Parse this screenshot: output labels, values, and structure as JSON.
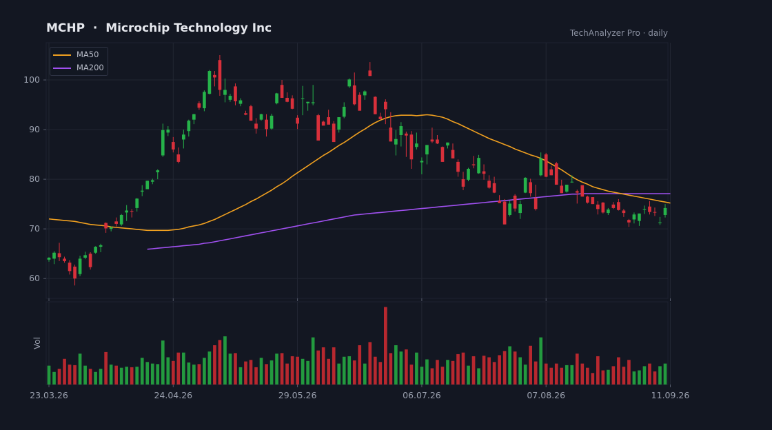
{
  "header": {
    "title": "MCHP  ·  Microchip Technology Inc",
    "source": "TechAnalyzer Pro · daily"
  },
  "colors": {
    "background": "#131722",
    "up": "#26b34a",
    "down": "#d9303b",
    "ma50": "#f0a020",
    "ma200": "#a050f0",
    "grid": "#222733",
    "text": "#9aa0ae"
  },
  "chart_data": {
    "type": "candlestick",
    "title": "MCHP  ·  Microchip Technology Inc",
    "x_tick_labels": [
      "23.03.26",
      "24.04.26",
      "29.05.26",
      "06.07.26",
      "07.08.26",
      "11.09.26"
    ],
    "x_tick_index": [
      0,
      24,
      48,
      72,
      96,
      120
    ],
    "y_ticks": [
      60,
      70,
      80,
      90,
      100
    ],
    "ylim": [
      56,
      107.5
    ],
    "volume_label": "Vol",
    "grid": true,
    "legend": {
      "position": "top-left",
      "entries": [
        {
          "name": "MA50",
          "color": "#f0a020"
        },
        {
          "name": "MA200",
          "color": "#a050f0"
        }
      ]
    },
    "ohlc": [
      [
        63.8,
        64.3,
        63.4,
        64.2
      ],
      [
        64.0,
        65.5,
        62.9,
        65.2
      ],
      [
        65.1,
        67.2,
        63.5,
        64.3
      ],
      [
        64.0,
        64.4,
        63.2,
        63.5
      ],
      [
        63.2,
        63.7,
        60.8,
        61.5
      ],
      [
        62.4,
        62.8,
        58.6,
        60.0
      ],
      [
        60.9,
        64.6,
        60.5,
        64.0
      ],
      [
        64.2,
        65.4,
        63.9,
        64.7
      ],
      [
        65.0,
        65.3,
        61.8,
        62.3
      ],
      [
        65.2,
        66.5,
        65.0,
        66.4
      ],
      [
        66.4,
        67.0,
        65.3,
        66.7
      ],
      [
        71.2,
        71.3,
        69.2,
        70.1
      ],
      [
        70.0,
        70.5,
        69.5,
        70.3
      ],
      [
        71.5,
        72.3,
        70.5,
        71.0
      ],
      [
        70.9,
        73.0,
        70.6,
        72.8
      ],
      [
        73.3,
        74.8,
        71.6,
        73.7
      ],
      [
        73.6,
        74.0,
        72.3,
        73.5
      ],
      [
        74.2,
        76.2,
        73.5,
        76.1
      ],
      [
        77.5,
        78.8,
        76.6,
        77.7
      ],
      [
        78.0,
        79.7,
        78.0,
        79.7
      ],
      [
        79.5,
        80.1,
        79.0,
        79.8
      ],
      [
        81.4,
        82.0,
        80.0,
        81.8
      ],
      [
        84.8,
        91.2,
        84.5,
        89.9
      ],
      [
        89.4,
        90.7,
        88.7,
        90.0
      ],
      [
        87.5,
        88.5,
        85.4,
        86.0
      ],
      [
        85.0,
        86.4,
        83.2,
        83.5
      ],
      [
        88.0,
        90.0,
        86.2,
        89.0
      ],
      [
        89.7,
        92.0,
        88.6,
        91.8
      ],
      [
        92.0,
        93.2,
        91.1,
        93.1
      ],
      [
        95.3,
        95.7,
        94.0,
        94.4
      ],
      [
        94.3,
        97.9,
        93.7,
        97.6
      ],
      [
        97.2,
        102.0,
        97.1,
        101.8
      ],
      [
        101.0,
        101.8,
        98.7,
        100.5
      ],
      [
        104.0,
        105.0,
        96.8,
        98.0
      ],
      [
        97.0,
        100.3,
        95.5,
        98.0
      ],
      [
        96.0,
        97.2,
        95.6,
        96.8
      ],
      [
        98.7,
        99.3,
        94.9,
        95.7
      ],
      [
        95.2,
        96.3,
        94.7,
        95.9
      ],
      [
        93.3,
        93.8,
        92.9,
        93.0
      ],
      [
        94.7,
        95.0,
        91.8,
        91.8
      ],
      [
        91.2,
        92.3,
        89.2,
        90.2
      ],
      [
        92.0,
        93.2,
        91.8,
        93.1
      ],
      [
        92.0,
        93.1,
        88.6,
        90.1
      ],
      [
        90.2,
        93.2,
        90.0,
        92.8
      ],
      [
        95.3,
        97.4,
        95.1,
        97.3
      ],
      [
        99.0,
        100.0,
        96.4,
        96.4
      ],
      [
        96.4,
        97.5,
        95.5,
        95.6
      ],
      [
        96.3,
        96.9,
        94.1,
        94.2
      ],
      [
        92.4,
        92.9,
        90.1,
        91.2
      ],
      [
        96.2,
        98.8,
        92.9,
        96.3
      ],
      [
        95.3,
        95.6,
        93.8,
        95.6
      ],
      [
        95.3,
        99.0,
        94.9,
        95.5
      ],
      [
        92.9,
        93.2,
        87.8,
        87.8
      ],
      [
        91.6,
        91.8,
        90.9,
        90.8
      ],
      [
        92.5,
        94.0,
        91.1,
        91.0
      ],
      [
        91.2,
        91.7,
        87.5,
        87.5
      ],
      [
        90.0,
        92.5,
        89.4,
        92.5
      ],
      [
        92.6,
        95.5,
        92.3,
        94.6
      ],
      [
        98.7,
        100.3,
        98.4,
        100.1
      ],
      [
        98.9,
        101.5,
        94.9,
        95.1
      ],
      [
        97.0,
        97.5,
        94.0,
        93.8
      ],
      [
        96.9,
        97.9,
        96.0,
        97.7
      ],
      [
        101.9,
        103.6,
        100.8,
        100.8
      ],
      [
        96.6,
        96.7,
        93.1,
        93.1
      ],
      [
        92.6,
        93.4,
        92.1,
        92.1
      ],
      [
        95.6,
        96.1,
        91.1,
        94.1
      ],
      [
        90.4,
        93.5,
        87.6,
        87.6
      ],
      [
        87.0,
        89.9,
        84.8,
        88.1
      ],
      [
        88.9,
        91.5,
        86.6,
        90.7
      ],
      [
        89.2,
        89.6,
        84.5,
        88.8
      ],
      [
        89.0,
        89.7,
        82.1,
        84.0
      ],
      [
        86.5,
        89.4,
        86.0,
        87.2
      ],
      [
        83.4,
        84.4,
        81.0,
        83.7
      ],
      [
        85.0,
        86.9,
        83.0,
        86.9
      ],
      [
        88.0,
        90.4,
        87.3,
        87.6
      ],
      [
        88.0,
        88.9,
        87.1,
        87.2
      ],
      [
        86.5,
        86.6,
        83.5,
        83.5
      ],
      [
        86.8,
        87.4,
        86.2,
        87.4
      ],
      [
        85.9,
        87.2,
        84.2,
        84.2
      ],
      [
        83.5,
        84.0,
        80.5,
        81.5
      ],
      [
        80.0,
        81.5,
        77.8,
        78.5
      ],
      [
        79.9,
        82.3,
        79.6,
        82.1
      ],
      [
        83.0,
        84.7,
        82.2,
        82.8
      ],
      [
        81.2,
        84.9,
        81.1,
        84.3
      ],
      [
        81.6,
        83.0,
        79.9,
        81.1
      ],
      [
        79.7,
        80.8,
        78.1,
        78.3
      ],
      [
        79.2,
        80.5,
        77.2,
        77.3
      ],
      [
        75.6,
        76.8,
        75.2,
        75.2
      ],
      [
        75.5,
        76.0,
        70.9,
        70.9
      ],
      [
        72.8,
        75.7,
        72.5,
        75.1
      ],
      [
        76.7,
        77.0,
        73.5,
        74.1
      ],
      [
        73.2,
        75.7,
        72.0,
        75.0
      ],
      [
        77.3,
        80.4,
        77.2,
        80.3
      ],
      [
        79.4,
        80.1,
        76.5,
        77.2
      ],
      [
        76.2,
        78.9,
        73.7,
        74.0
      ],
      [
        80.8,
        85.4,
        80.6,
        84.2
      ],
      [
        85.0,
        85.3,
        80.4,
        80.5
      ],
      [
        82.0,
        82.7,
        80.8,
        80.8
      ],
      [
        83.2,
        83.5,
        78.9,
        78.9
      ],
      [
        78.7,
        79.9,
        77.2,
        77.2
      ],
      [
        77.5,
        78.9,
        77.3,
        78.9
      ],
      [
        79.5,
        80.8,
        79.3,
        79.5
      ],
      [
        77.6,
        77.9,
        75.1,
        77.3
      ],
      [
        78.8,
        78.8,
        76.5,
        76.5
      ],
      [
        76.5,
        76.7,
        75.1,
        75.3
      ],
      [
        76.4,
        76.4,
        75.0,
        75.0
      ],
      [
        74.9,
        75.6,
        72.9,
        74.0
      ],
      [
        75.3,
        75.4,
        73.1,
        73.3
      ],
      [
        73.2,
        74.2,
        72.8,
        73.9
      ],
      [
        74.9,
        75.4,
        74.0,
        74.2
      ],
      [
        75.4,
        76.0,
        73.7,
        73.8
      ],
      [
        73.7,
        74.0,
        72.4,
        73.2
      ],
      [
        71.8,
        72.0,
        70.4,
        71.3
      ],
      [
        71.9,
        73.3,
        71.1,
        72.9
      ],
      [
        71.6,
        73.1,
        70.6,
        73.1
      ],
      [
        74.0,
        74.7,
        73.0,
        74.0
      ],
      [
        74.5,
        75.6,
        72.9,
        73.4
      ],
      [
        73.4,
        74.3,
        72.6,
        73.3
      ],
      [
        71.2,
        72.4,
        70.8,
        71.3
      ],
      [
        72.8,
        75.0,
        72.3,
        74.2
      ]
    ],
    "volume": [
      36,
      24,
      30,
      49,
      38,
      37,
      59,
      36,
      30,
      24,
      30,
      62,
      38,
      36,
      32,
      34,
      33,
      34,
      51,
      43,
      40,
      39,
      84,
      52,
      45,
      61,
      61,
      42,
      38,
      39,
      51,
      63,
      75,
      85,
      92,
      59,
      60,
      33,
      44,
      47,
      33,
      51,
      39,
      46,
      59,
      60,
      40,
      54,
      53,
      49,
      45,
      90,
      65,
      71,
      49,
      71,
      40,
      53,
      54,
      46,
      75,
      40,
      81,
      53,
      43,
      148,
      60,
      75,
      63,
      67,
      38,
      61,
      34,
      48,
      31,
      47,
      34,
      47,
      45,
      58,
      61,
      36,
      54,
      31,
      55,
      52,
      43,
      56,
      64,
      73,
      63,
      52,
      38,
      74,
      44,
      90,
      40,
      32,
      40,
      32,
      37,
      37,
      59,
      40,
      32,
      22,
      54,
      27,
      28,
      35,
      52,
      34,
      47,
      25,
      27,
      35,
      40,
      25,
      35,
      40
    ],
    "ma50": [
      72.0,
      71.9,
      71.8,
      71.7,
      71.6,
      71.5,
      71.3,
      71.1,
      70.9,
      70.8,
      70.7,
      70.6,
      70.4,
      70.3,
      70.2,
      70.1,
      70.0,
      69.9,
      69.8,
      69.7,
      69.7,
      69.7,
      69.7,
      69.7,
      69.8,
      69.9,
      70.1,
      70.4,
      70.6,
      70.8,
      71.1,
      71.5,
      71.9,
      72.4,
      72.9,
      73.4,
      73.9,
      74.4,
      74.9,
      75.5,
      76.0,
      76.6,
      77.2,
      77.8,
      78.5,
      79.1,
      79.8,
      80.6,
      81.3,
      82.0,
      82.7,
      83.4,
      84.1,
      84.8,
      85.4,
      86.1,
      86.8,
      87.4,
      88.1,
      88.8,
      89.5,
      90.1,
      90.8,
      91.4,
      91.9,
      92.3,
      92.6,
      92.8,
      92.9,
      92.9,
      92.9,
      92.8,
      92.9,
      93.0,
      92.9,
      92.7,
      92.5,
      92.1,
      91.6,
      91.2,
      90.7,
      90.2,
      89.7,
      89.2,
      88.7,
      88.2,
      87.8,
      87.4,
      87.0,
      86.6,
      86.1,
      85.7,
      85.3,
      84.9,
      84.6,
      84.2,
      83.7,
      83.1,
      82.5,
      81.9,
      81.2,
      80.5,
      79.9,
      79.4,
      79.0,
      78.5,
      78.2,
      77.9,
      77.6,
      77.4,
      77.2,
      77.0,
      76.8,
      76.6,
      76.4,
      76.2,
      76.0,
      75.8,
      75.6,
      75.4,
      75.2
    ],
    "ma200_start": 19,
    "ma200": [
      65.9,
      66.0,
      66.1,
      66.2,
      66.3,
      66.4,
      66.5,
      66.6,
      66.7,
      66.8,
      66.9,
      67.1,
      67.2,
      67.4,
      67.6,
      67.8,
      68.0,
      68.2,
      68.4,
      68.6,
      68.8,
      69.0,
      69.2,
      69.4,
      69.6,
      69.8,
      70.0,
      70.2,
      70.4,
      70.6,
      70.8,
      71.0,
      71.2,
      71.4,
      71.6,
      71.8,
      72.0,
      72.2,
      72.4,
      72.6,
      72.8,
      72.9,
      73.0,
      73.1,
      73.2,
      73.3,
      73.4,
      73.5,
      73.6,
      73.7,
      73.8,
      73.9,
      74.0,
      74.1,
      74.2,
      74.3,
      74.4,
      74.5,
      74.6,
      74.7,
      74.8,
      74.9,
      75.0,
      75.1,
      75.2,
      75.3,
      75.4,
      75.5,
      75.6,
      75.7,
      75.8,
      75.9,
      76.0,
      76.1,
      76.2,
      76.3,
      76.4,
      76.5,
      76.6,
      76.7,
      76.8,
      76.9,
      77.0,
      77.0,
      77.1,
      77.1,
      77.1,
      77.1,
      77.1,
      77.1,
      77.1,
      77.1,
      77.1,
      77.1,
      77.1,
      77.1,
      77.1,
      77.1,
      77.1,
      77.1,
      77.1,
      77.1
    ]
  }
}
